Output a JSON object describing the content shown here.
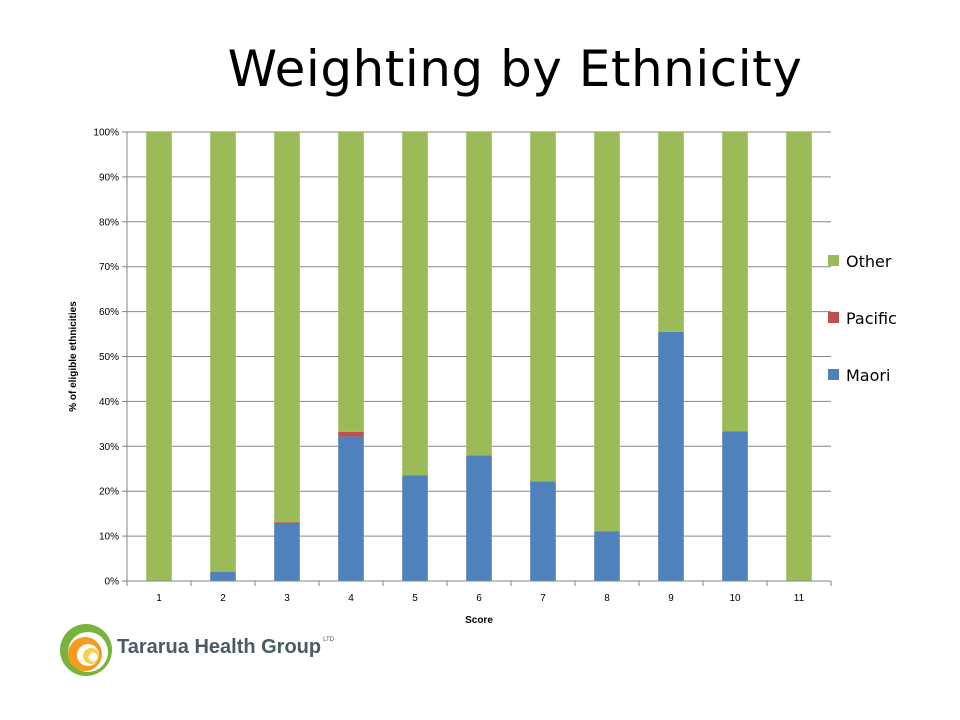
{
  "slide": {
    "title": "Weighting by Ethnicity"
  },
  "chart_data": {
    "type": "bar",
    "stacked": true,
    "percent_stacked": true,
    "categories": [
      "1",
      "2",
      "3",
      "4",
      "5",
      "6",
      "7",
      "8",
      "9",
      "10",
      "11"
    ],
    "series": [
      {
        "name": "Maori",
        "color": "#4f81bd",
        "values": [
          0,
          2,
          12.7,
          32.2,
          23.5,
          28.0,
          22.2,
          11.1,
          55.5,
          33.3,
          0
        ]
      },
      {
        "name": "Pacific",
        "color": "#c0504d",
        "values": [
          0,
          0,
          0.4,
          1.0,
          0,
          0,
          0,
          0,
          0,
          0,
          0
        ]
      },
      {
        "name": "Other",
        "color": "#9bbb59",
        "values": [
          100,
          98,
          86.9,
          66.8,
          76.5,
          72.0,
          77.8,
          88.9,
          44.5,
          66.7,
          100
        ]
      }
    ],
    "legend_order": [
      "Other",
      "Pacific",
      "Maori"
    ],
    "legend_position": "right",
    "xlabel": "Score",
    "ylabel": "% of eligible ethnicities",
    "ylim": [
      0,
      100
    ],
    "yticks": [
      "0%",
      "10%",
      "20%",
      "30%",
      "40%",
      "50%",
      "60%",
      "70%",
      "80%",
      "90%",
      "100%"
    ],
    "grid": true
  },
  "logo": {
    "text": "Tararua Health Group",
    "suffix": "LTD"
  }
}
